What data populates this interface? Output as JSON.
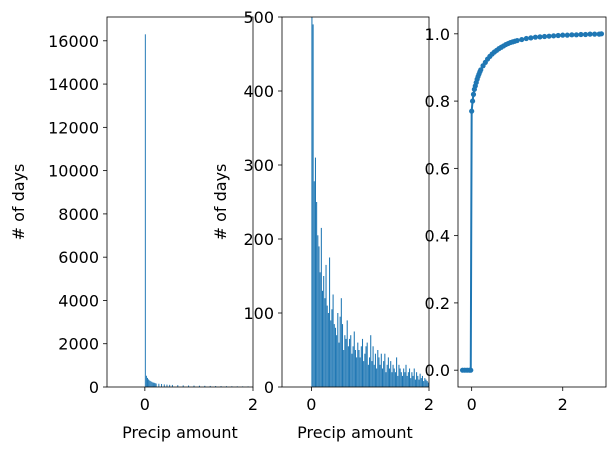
{
  "colors": {
    "series": "#1f77b4",
    "axes": "#000000",
    "background": "#ffffff"
  },
  "chart_data": [
    {
      "type": "bar",
      "xlabel": "Precip amount",
      "ylabel": "# of days",
      "xlim": [
        -0.7,
        2.0
      ],
      "ylim": [
        0,
        17100
      ],
      "xticks": [
        0,
        2
      ],
      "yticks": [
        0,
        2000,
        4000,
        6000,
        8000,
        10000,
        12000,
        14000,
        16000
      ],
      "bin_width": 0.02,
      "x": [
        0.0,
        0.02,
        0.04,
        0.06,
        0.08,
        0.1,
        0.12,
        0.14,
        0.16,
        0.18,
        0.2,
        0.25,
        0.3,
        0.35,
        0.4,
        0.45,
        0.5,
        0.6,
        0.7,
        0.8,
        0.9,
        1.0,
        1.1,
        1.2,
        1.3,
        1.4,
        1.5,
        1.6,
        1.7,
        1.8,
        1.9
      ],
      "values": [
        16300,
        520,
        420,
        350,
        300,
        270,
        240,
        210,
        200,
        180,
        160,
        150,
        140,
        120,
        110,
        100,
        95,
        85,
        75,
        70,
        65,
        60,
        55,
        50,
        45,
        40,
        38,
        35,
        32,
        30,
        28
      ]
    },
    {
      "type": "bar",
      "xlabel": "Precip amount",
      "ylabel": "# of days",
      "xlim": [
        -0.5,
        2.0
      ],
      "ylim": [
        0,
        500
      ],
      "xticks": [
        0,
        2
      ],
      "yticks": [
        0,
        100,
        200,
        300,
        400,
        500
      ],
      "bin_width": 0.02,
      "x": [
        0.0,
        0.02,
        0.04,
        0.06,
        0.08,
        0.1,
        0.12,
        0.14,
        0.16,
        0.18,
        0.2,
        0.22,
        0.24,
        0.26,
        0.28,
        0.3,
        0.32,
        0.34,
        0.36,
        0.38,
        0.4,
        0.42,
        0.44,
        0.46,
        0.48,
        0.5,
        0.52,
        0.54,
        0.56,
        0.58,
        0.6,
        0.62,
        0.64,
        0.66,
        0.68,
        0.7,
        0.72,
        0.74,
        0.76,
        0.78,
        0.8,
        0.82,
        0.84,
        0.86,
        0.88,
        0.9,
        0.92,
        0.94,
        0.96,
        0.98,
        1.0,
        1.02,
        1.04,
        1.06,
        1.08,
        1.1,
        1.12,
        1.14,
        1.16,
        1.18,
        1.2,
        1.22,
        1.24,
        1.26,
        1.28,
        1.3,
        1.32,
        1.34,
        1.36,
        1.38,
        1.4,
        1.42,
        1.44,
        1.46,
        1.48,
        1.5,
        1.52,
        1.54,
        1.56,
        1.58,
        1.6,
        1.62,
        1.64,
        1.66,
        1.68,
        1.7,
        1.72,
        1.74,
        1.76,
        1.78,
        1.8,
        1.82,
        1.84,
        1.86,
        1.88,
        1.9,
        1.92,
        1.94,
        1.96,
        1.98
      ],
      "values": [
        500,
        490,
        278,
        310,
        250,
        205,
        190,
        155,
        215,
        130,
        150,
        120,
        165,
        110,
        100,
        175,
        90,
        105,
        125,
        85,
        80,
        70,
        100,
        60,
        95,
        120,
        85,
        50,
        70,
        65,
        90,
        55,
        65,
        70,
        45,
        55,
        75,
        50,
        40,
        60,
        50,
        40,
        55,
        65,
        35,
        45,
        55,
        60,
        30,
        40,
        70,
        35,
        55,
        30,
        45,
        25,
        50,
        40,
        30,
        45,
        25,
        35,
        45,
        20,
        30,
        40,
        25,
        35,
        20,
        30,
        25,
        20,
        40,
        15,
        30,
        25,
        20,
        15,
        25,
        20,
        30,
        15,
        20,
        25,
        12,
        20,
        15,
        25,
        10,
        20,
        15,
        10,
        18,
        12,
        15,
        8,
        12,
        10,
        8,
        6
      ]
    },
    {
      "type": "line",
      "marker": "circle",
      "xlim": [
        -0.3,
        2.95
      ],
      "ylim": [
        -0.05,
        1.05
      ],
      "xticks": [
        0,
        2
      ],
      "yticks": [
        0.0,
        0.2,
        0.4,
        0.6,
        0.8,
        1.0
      ],
      "x": [
        -0.2,
        -0.15,
        -0.1,
        -0.05,
        -0.02,
        0.0,
        0.02,
        0.04,
        0.06,
        0.08,
        0.1,
        0.12,
        0.14,
        0.16,
        0.18,
        0.2,
        0.25,
        0.3,
        0.35,
        0.4,
        0.45,
        0.5,
        0.55,
        0.6,
        0.65,
        0.7,
        0.75,
        0.8,
        0.85,
        0.9,
        0.95,
        1.0,
        1.1,
        1.2,
        1.3,
        1.4,
        1.5,
        1.6,
        1.7,
        1.8,
        1.9,
        2.0,
        2.1,
        2.2,
        2.3,
        2.4,
        2.5,
        2.6,
        2.7,
        2.8,
        2.85
      ],
      "y": [
        0.0,
        0.0,
        0.0,
        0.0,
        0.0,
        0.77,
        0.8,
        0.82,
        0.835,
        0.845,
        0.855,
        0.865,
        0.873,
        0.88,
        0.887,
        0.893,
        0.905,
        0.915,
        0.925,
        0.933,
        0.94,
        0.946,
        0.951,
        0.956,
        0.96,
        0.964,
        0.968,
        0.971,
        0.974,
        0.976,
        0.978,
        0.98,
        0.983,
        0.986,
        0.988,
        0.99,
        0.991,
        0.992,
        0.993,
        0.994,
        0.995,
        0.996,
        0.996,
        0.997,
        0.997,
        0.998,
        0.998,
        0.999,
        0.999,
        0.999,
        1.0
      ]
    }
  ]
}
